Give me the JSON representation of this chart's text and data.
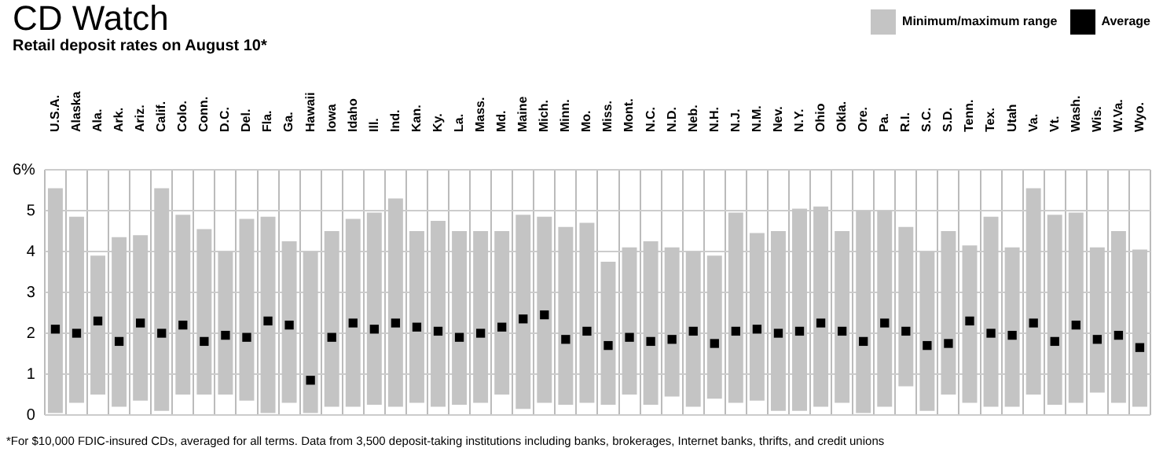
{
  "chart_data": {
    "type": "bar",
    "title": "CD Watch",
    "subtitle": "Retail deposit rates on August 10*",
    "categories": [
      "U.S.A.",
      "Alaska",
      "Ala.",
      "Ark.",
      "Ariz.",
      "Calif.",
      "Colo.",
      "Conn.",
      "D.C.",
      "Del.",
      "Fla.",
      "Ga.",
      "Hawaii",
      "Iowa",
      "Idaho",
      "Ill.",
      "Ind.",
      "Kan.",
      "Ky.",
      "La.",
      "Mass.",
      "Md.",
      "Maine",
      "Mich.",
      "Minn.",
      "Mo.",
      "Miss.",
      "Mont.",
      "N.C.",
      "N.D.",
      "Neb.",
      "N.H.",
      "N.J.",
      "N.M.",
      "Nev.",
      "N.Y.",
      "Ohio",
      "Okla.",
      "Ore.",
      "Pa.",
      "R.I.",
      "S.C.",
      "S.D.",
      "Tenn.",
      "Tex.",
      "Utah",
      "Va.",
      "Vt.",
      "Wash.",
      "Wis.",
      "W.Va.",
      "Wyo."
    ],
    "series": [
      {
        "name": "Minimum/maximum range",
        "color": "#c4c4c4",
        "base": [
          0.05,
          0.3,
          0.5,
          0.2,
          0.35,
          0.1,
          0.5,
          0.5,
          0.5,
          0.35,
          0.05,
          0.3,
          0.05,
          0.2,
          0.2,
          0.25,
          0.2,
          0.3,
          0.2,
          0.25,
          0.3,
          0.5,
          0.15,
          0.3,
          0.25,
          0.3,
          0.25,
          0.5,
          0.25,
          0.45,
          0.2,
          0.4,
          0.3,
          0.35,
          0.1,
          0.1,
          0.2,
          0.3,
          0.05,
          0.2,
          0.7,
          0.1,
          0.5,
          0.3,
          0.2,
          0.2,
          0.5,
          0.25,
          0.3,
          0.55,
          0.3,
          0.2
        ],
        "values": [
          5.5,
          4.55,
          3.4,
          4.15,
          4.05,
          5.45,
          4.4,
          4.05,
          3.5,
          4.45,
          4.8,
          3.95,
          3.95,
          4.3,
          4.6,
          4.7,
          5.1,
          4.2,
          4.55,
          4.25,
          4.2,
          4.0,
          4.75,
          4.55,
          4.35,
          4.4,
          3.5,
          3.6,
          4.0,
          3.65,
          3.8,
          3.5,
          4.65,
          4.1,
          4.4,
          4.95,
          4.9,
          4.2,
          4.95,
          4.8,
          3.9,
          3.9,
          4.0,
          3.85,
          4.65,
          3.9,
          5.05,
          4.65,
          4.65,
          3.55,
          4.2,
          3.85
        ]
      },
      {
        "name": "Average",
        "type": "scatter",
        "color": "#000000",
        "values": [
          2.1,
          2.0,
          2.3,
          1.8,
          2.25,
          2.0,
          2.2,
          1.8,
          1.95,
          1.9,
          2.3,
          2.2,
          0.85,
          1.9,
          2.25,
          2.1,
          2.25,
          2.15,
          2.05,
          1.9,
          2.0,
          2.15,
          2.35,
          2.45,
          1.85,
          2.05,
          1.7,
          1.9,
          1.8,
          1.85,
          2.05,
          1.75,
          2.05,
          2.1,
          2.0,
          2.05,
          2.25,
          2.05,
          1.8,
          2.25,
          2.05,
          1.7,
          1.75,
          2.3,
          2.0,
          1.95,
          2.25,
          1.8,
          2.2,
          1.85,
          1.95,
          1.65
        ]
      }
    ],
    "ylim": [
      0,
      6
    ],
    "yticks": [
      0,
      1,
      2,
      3,
      4,
      5,
      {
        "value": 6,
        "label": "6%"
      }
    ],
    "grid": true,
    "legend": "top right",
    "annotations": [
      "*For $10,000 FDIC-insured CDs, averaged for all terms. Data from 3,500 deposit-taking institutions including banks, brokerages, Internet banks, thrifts, and credit unions"
    ]
  }
}
